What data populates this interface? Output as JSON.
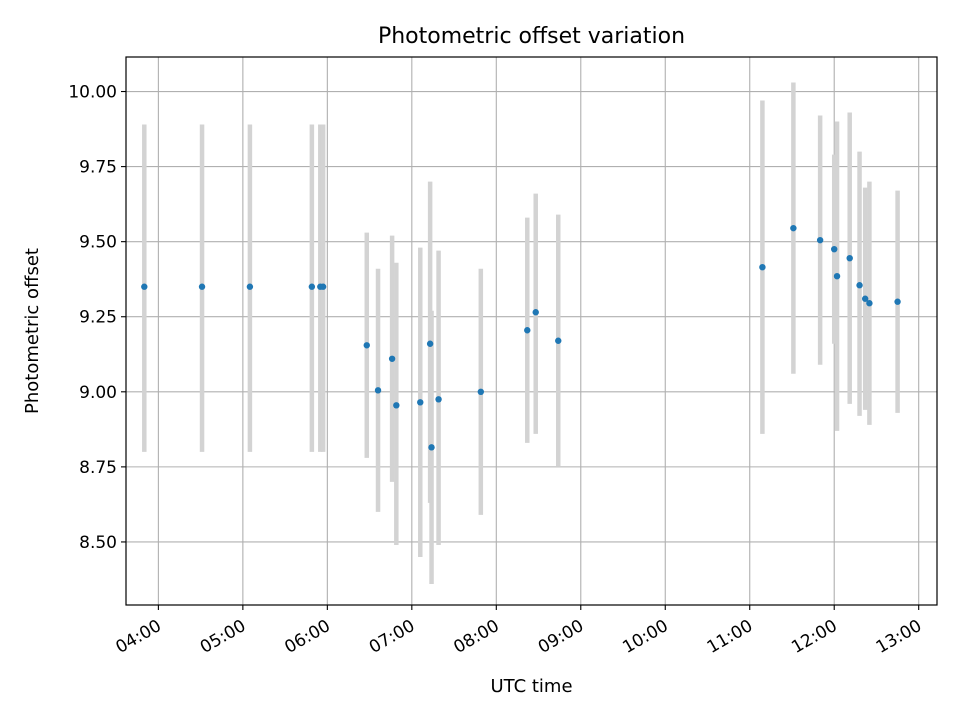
{
  "chart_data": {
    "type": "scatter",
    "title": "Photometric offset variation",
    "xlabel": "UTC time",
    "ylabel": "Photometric offset",
    "x_tick_labels": [
      "04:00",
      "05:00",
      "06:00",
      "07:00",
      "08:00",
      "09:00",
      "10:00",
      "11:00",
      "12:00",
      "13:00"
    ],
    "y_tick_labels": [
      "8.50",
      "8.75",
      "9.00",
      "9.25",
      "9.50",
      "9.75",
      "10.00"
    ],
    "xlim": [
      "03:37",
      "13:13"
    ],
    "ylim": [
      8.29,
      10.115
    ],
    "grid": true,
    "error_bar_color": "#d3d3d3",
    "point_color": "#1f77b4",
    "points": [
      {
        "t": "03:50",
        "y": 9.35,
        "lo": 8.8,
        "hi": 9.89
      },
      {
        "t": "04:31",
        "y": 9.35,
        "lo": 8.8,
        "hi": 9.89
      },
      {
        "t": "05:05",
        "y": 9.35,
        "lo": 8.8,
        "hi": 9.89
      },
      {
        "t": "05:49",
        "y": 9.35,
        "lo": 8.8,
        "hi": 9.89
      },
      {
        "t": "05:55",
        "y": 9.35,
        "lo": 8.8,
        "hi": 9.89
      },
      {
        "t": "05:57",
        "y": 9.35,
        "lo": 8.8,
        "hi": 9.89
      },
      {
        "t": "06:28",
        "y": 9.155,
        "lo": 8.78,
        "hi": 9.53
      },
      {
        "t": "06:36",
        "y": 9.005,
        "lo": 8.6,
        "hi": 9.41
      },
      {
        "t": "06:46",
        "y": 9.11,
        "lo": 8.7,
        "hi": 9.52
      },
      {
        "t": "06:49",
        "y": 8.955,
        "lo": 8.49,
        "hi": 9.43
      },
      {
        "t": "07:06",
        "y": 8.965,
        "lo": 8.45,
        "hi": 9.48
      },
      {
        "t": "07:13",
        "y": 9.16,
        "lo": 8.63,
        "hi": 9.7
      },
      {
        "t": "07:14",
        "y": 8.815,
        "lo": 8.36,
        "hi": 9.27
      },
      {
        "t": "07:19",
        "y": 8.975,
        "lo": 8.49,
        "hi": 9.47
      },
      {
        "t": "07:49",
        "y": 9.0,
        "lo": 8.59,
        "hi": 9.41
      },
      {
        "t": "08:22",
        "y": 9.205,
        "lo": 8.83,
        "hi": 9.58
      },
      {
        "t": "08:28",
        "y": 9.265,
        "lo": 8.86,
        "hi": 9.66
      },
      {
        "t": "08:44",
        "y": 9.17,
        "lo": 8.75,
        "hi": 9.59
      },
      {
        "t": "11:09",
        "y": 9.415,
        "lo": 8.86,
        "hi": 9.97
      },
      {
        "t": "11:31",
        "y": 9.545,
        "lo": 9.06,
        "hi": 10.03
      },
      {
        "t": "11:50",
        "y": 9.505,
        "lo": 9.09,
        "hi": 9.92
      },
      {
        "t": "12:00",
        "y": 9.475,
        "lo": 9.16,
        "hi": 9.79
      },
      {
        "t": "12:02",
        "y": 9.385,
        "lo": 8.87,
        "hi": 9.9
      },
      {
        "t": "12:11",
        "y": 9.445,
        "lo": 8.96,
        "hi": 9.93
      },
      {
        "t": "12:18",
        "y": 9.355,
        "lo": 8.92,
        "hi": 9.8
      },
      {
        "t": "12:22",
        "y": 9.31,
        "lo": 8.94,
        "hi": 9.68
      },
      {
        "t": "12:25",
        "y": 9.295,
        "lo": 8.89,
        "hi": 9.7
      },
      {
        "t": "12:45",
        "y": 9.3,
        "lo": 8.93,
        "hi": 9.67
      }
    ]
  }
}
